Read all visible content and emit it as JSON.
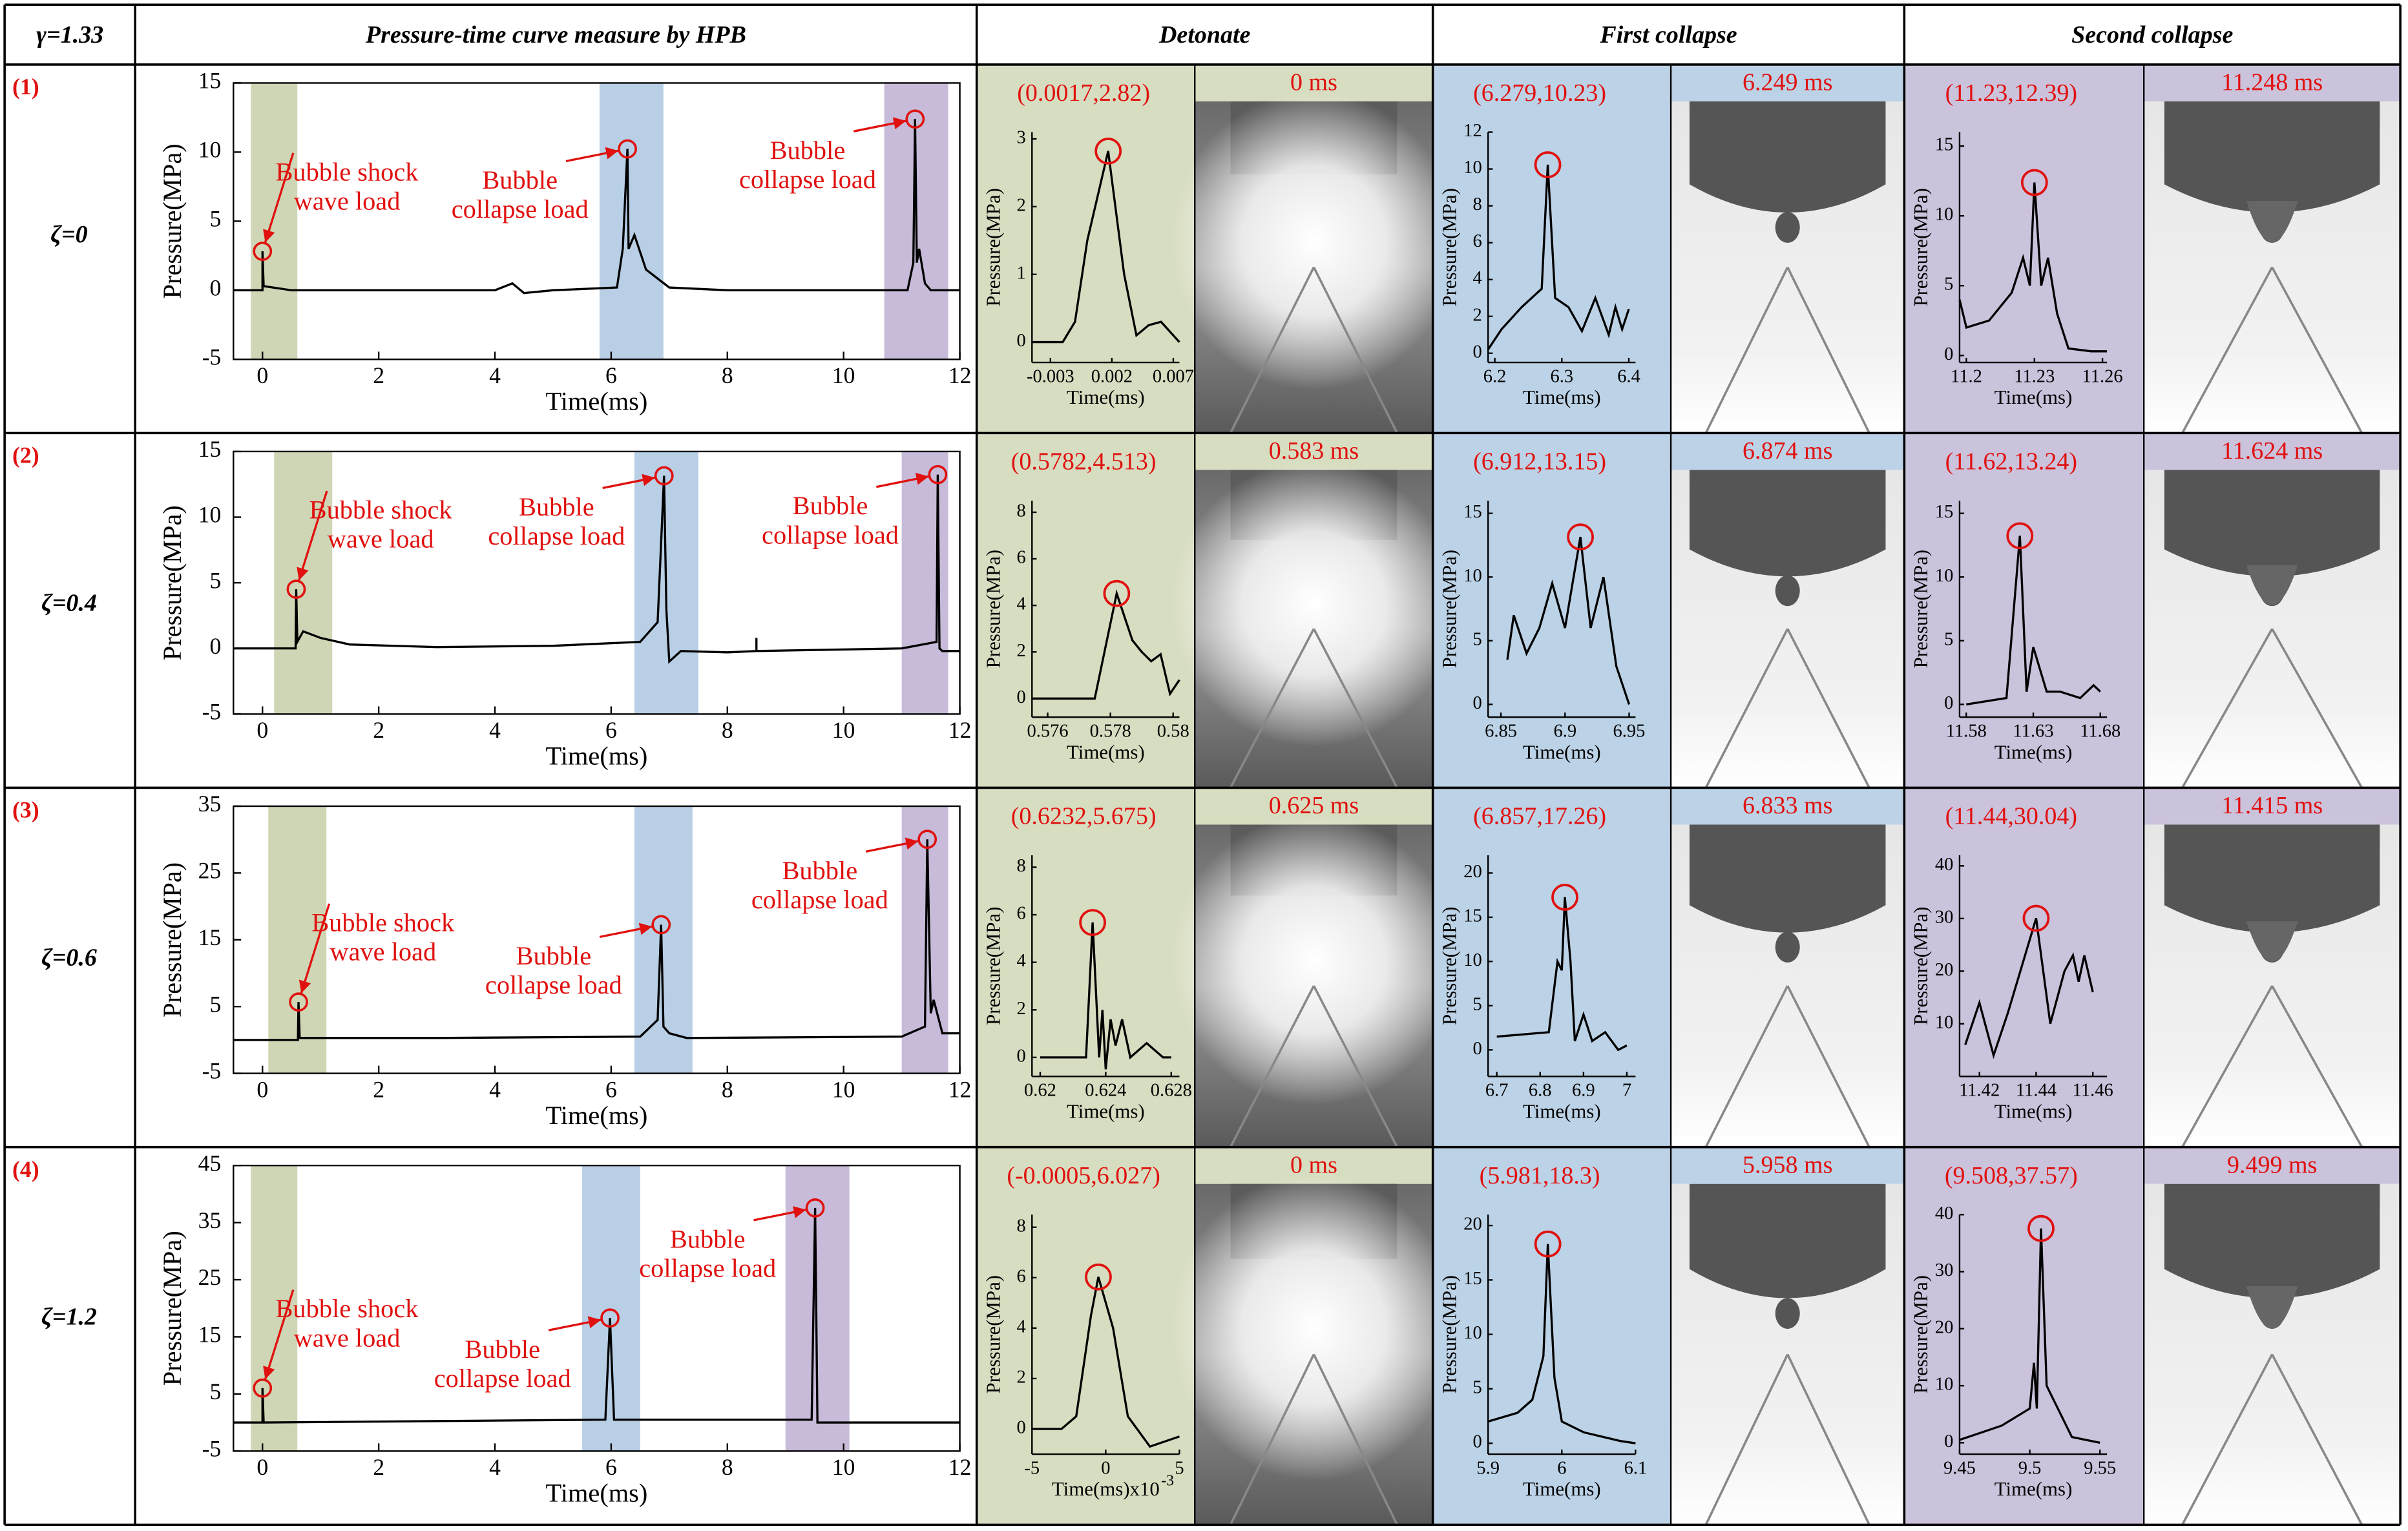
{
  "table": {
    "corner": "γ=1.33",
    "headers": [
      "Pressure-time curve measure by HPB",
      "Detonate",
      "First collapse",
      "Second collapse"
    ],
    "rows": [
      {
        "index": "(1)",
        "label": "ζ=0",
        "frames": [
          "0 ms",
          "6.249 ms",
          "11.248 ms"
        ]
      },
      {
        "index": "(2)",
        "label": "ζ=0.4",
        "frames": [
          "0.583 ms",
          "6.874 ms",
          "11.624 ms"
        ]
      },
      {
        "index": "(3)",
        "label": "ζ=0.6",
        "frames": [
          "0.625 ms",
          "6.833 ms",
          "11.415 ms"
        ]
      },
      {
        "index": "(4)",
        "label": "ζ=1.2",
        "frames": [
          "0 ms",
          "5.958 ms",
          "9.499 ms"
        ]
      }
    ]
  },
  "chart_data": [
    {
      "type": "line",
      "x_label": "Time(ms)",
      "y_label": "Pressure(MPa)",
      "color": "#000000",
      "marker_color": "#e0110f",
      "xlim": [
        -0.5,
        12
      ],
      "xticks": [
        0,
        2,
        4,
        6,
        8,
        10,
        12
      ],
      "ylim": [
        -5,
        15
      ],
      "yticks": [
        -5,
        0,
        5,
        10,
        15
      ],
      "x": [
        -0.5,
        0,
        0,
        0.02,
        0.5,
        4,
        4.3,
        4.5,
        5,
        6.1,
        6.2,
        6.28,
        6.3,
        6.4,
        6.6,
        7,
        8,
        10,
        11.1,
        11.2,
        11.23,
        11.26,
        11.3,
        11.4,
        11.5,
        12
      ],
      "values": [
        0,
        0,
        2.82,
        0.3,
        0,
        0,
        0.5,
        -0.2,
        0,
        0.2,
        3,
        10.23,
        3,
        4,
        1.5,
        0.2,
        0,
        0,
        0,
        2,
        12.39,
        2,
        3,
        0.5,
        0,
        0
      ],
      "bands": [
        {
          "range": [
            -0.2,
            0.6
          ],
          "color": "#c3cca3"
        },
        {
          "range": [
            5.8,
            6.9
          ],
          "color": "#a6c3df"
        },
        {
          "range": [
            10.7,
            11.8
          ],
          "color": "#b9aad0"
        }
      ],
      "annotations": [
        {
          "text": [
            "Bubble shock",
            "wave load"
          ],
          "x": 0,
          "y": 2.82
        },
        {
          "text": [
            "Bubble",
            "collapse load"
          ],
          "x": 6.28,
          "y": 10.23
        },
        {
          "text": [
            "Bubble",
            "collapse load"
          ],
          "x": 11.23,
          "y": 12.39
        }
      ]
    },
    {
      "type": "line",
      "x_label": "Time(ms)",
      "y_label": "Pressure(MPa)",
      "color": "#000000",
      "marker_color": "#e0110f",
      "xlim": [
        -0.5,
        12
      ],
      "xticks": [
        0,
        2,
        4,
        6,
        8,
        10,
        12
      ],
      "ylim": [
        -5,
        15
      ],
      "yticks": [
        -5,
        0,
        5,
        10,
        15
      ],
      "x": [
        -0.5,
        0.57,
        0.58,
        0.6,
        0.7,
        1,
        1.5,
        3,
        5,
        6.5,
        6.8,
        6.91,
        6.95,
        7,
        7.2,
        8,
        8.5,
        8.5,
        8.5,
        11,
        11.6,
        11.62,
        11.65,
        11.7,
        12
      ],
      "values": [
        0,
        0,
        4.51,
        0.5,
        1.3,
        0.8,
        0.3,
        0.1,
        0.2,
        0.5,
        2,
        13.15,
        3,
        -1,
        -0.2,
        -0.3,
        -0.2,
        0.8,
        -0.2,
        0,
        0.5,
        13.24,
        0,
        -0.2,
        -0.2
      ],
      "bands": [
        {
          "range": [
            0.2,
            1.2
          ],
          "color": "#c3cca3"
        },
        {
          "range": [
            6.4,
            7.5
          ],
          "color": "#a6c3df"
        },
        {
          "range": [
            11,
            11.8
          ],
          "color": "#b9aad0"
        }
      ],
      "annotations": [
        {
          "text": [
            "Bubble shock",
            "wave load"
          ],
          "x": 0.58,
          "y": 4.51
        },
        {
          "text": [
            "Bubble",
            "collapse load"
          ],
          "x": 6.91,
          "y": 13.15
        },
        {
          "text": [
            "Bubble",
            "collapse load"
          ],
          "x": 11.62,
          "y": 13.24
        }
      ]
    },
    {
      "type": "line",
      "x_label": "Time(ms)",
      "y_label": "Pressure(MPa)",
      "color": "#000000",
      "marker_color": "#e0110f",
      "xlim": [
        -0.5,
        12
      ],
      "xticks": [
        0,
        2,
        4,
        6,
        8,
        10,
        12
      ],
      "ylim": [
        -5,
        35
      ],
      "yticks": [
        -5,
        5,
        15,
        25,
        35
      ],
      "x": [
        -0.5,
        0.61,
        0.62,
        0.64,
        3,
        6.5,
        6.8,
        6.86,
        6.9,
        7,
        7.3,
        11,
        11.4,
        11.44,
        11.5,
        11.55,
        11.7,
        12
      ],
      "values": [
        0,
        0,
        5.68,
        0.3,
        0.3,
        0.5,
        3,
        17.26,
        2,
        1,
        0.3,
        0.5,
        2,
        30.04,
        4,
        6,
        1,
        1
      ],
      "bands": [
        {
          "range": [
            0.1,
            1.1
          ],
          "color": "#c3cca3"
        },
        {
          "range": [
            6.4,
            7.4
          ],
          "color": "#a6c3df"
        },
        {
          "range": [
            11,
            11.8
          ],
          "color": "#b9aad0"
        }
      ],
      "annotations": [
        {
          "text": [
            "Bubble shock",
            "wave load"
          ],
          "x": 0.62,
          "y": 5.68
        },
        {
          "text": [
            "Bubble",
            "collapse load"
          ],
          "x": 6.86,
          "y": 17.26
        },
        {
          "text": [
            "Bubble",
            "collapse load"
          ],
          "x": 11.44,
          "y": 30.04
        }
      ]
    },
    {
      "type": "line",
      "x_label": "Time(ms)",
      "y_label": "Pressure(MPa)",
      "color": "#000000",
      "marker_color": "#e0110f",
      "xlim": [
        -0.5,
        12
      ],
      "xticks": [
        0,
        2,
        4,
        6,
        8,
        10,
        12
      ],
      "ylim": [
        -5,
        45
      ],
      "yticks": [
        -5,
        5,
        15,
        25,
        35,
        45
      ],
      "x": [
        -0.5,
        0,
        0,
        0.02,
        5.9,
        5.98,
        6.05,
        9.45,
        9.51,
        9.55,
        12
      ],
      "values": [
        0,
        0,
        6.03,
        0,
        0.5,
        18.3,
        0.5,
        0.5,
        37.57,
        0,
        0
      ],
      "bands": [
        {
          "range": [
            -0.2,
            0.6
          ],
          "color": "#c3cca3"
        },
        {
          "range": [
            5.5,
            6.5
          ],
          "color": "#a6c3df"
        },
        {
          "range": [
            9,
            10.1
          ],
          "color": "#b9aad0"
        }
      ],
      "annotations": [
        {
          "text": [
            "Bubble shock",
            "wave load"
          ],
          "x": 0,
          "y": 6.03
        },
        {
          "text": [
            "Bubble",
            "collapse load"
          ],
          "x": 5.98,
          "y": 18.3
        },
        {
          "text": [
            "Bubble",
            "collapse load"
          ],
          "x": 9.51,
          "y": 37.57
        }
      ]
    },
    {
      "type": "line",
      "x_label": "Time(ms)",
      "y_label": "Pressure(MPa)",
      "color": "#000000",
      "background": "#d7ddc0",
      "xlim": [
        -0.0045,
        0.0075
      ],
      "xticks": [
        -0.003,
        0.002,
        0.007
      ],
      "ylim": [
        -0.3,
        3.1
      ],
      "yticks": [
        0,
        1,
        2,
        3
      ],
      "x": [
        -0.0045,
        -0.002,
        -0.001,
        0,
        0.0017,
        0.003,
        0.004,
        0.005,
        0.006,
        0.007,
        0.0075
      ],
      "values": [
        0,
        0,
        0.3,
        1.5,
        2.82,
        1,
        0.1,
        0.25,
        0.3,
        0.1,
        0
      ],
      "peak": {
        "x": 0.0017,
        "y": 2.82,
        "label": "(0.0017,2.82)"
      }
    },
    {
      "type": "line",
      "x_label": "Time(ms)",
      "y_label": "Pressure(MPa)",
      "color": "#000000",
      "background": "#bcd2e6",
      "xlim": [
        6.19,
        6.41
      ],
      "xticks": [
        6.2,
        6.3,
        6.4
      ],
      "ylim": [
        -0.5,
        12
      ],
      "yticks": [
        0,
        2,
        4,
        6,
        8,
        10,
        12
      ],
      "x": [
        6.19,
        6.21,
        6.24,
        6.27,
        6.279,
        6.29,
        6.31,
        6.33,
        6.35,
        6.37,
        6.38,
        6.39,
        6.4
      ],
      "values": [
        0.2,
        1.3,
        2.5,
        3.5,
        10.23,
        3,
        2.5,
        1.2,
        3,
        1,
        2.5,
        1.3,
        2.4
      ],
      "peak": {
        "x": 6.279,
        "y": 10.23,
        "label": "(6.279,10.23)"
      }
    },
    {
      "type": "line",
      "x_label": "Time(ms)",
      "y_label": "Pressure(MPa)",
      "color": "#000000",
      "background": "#cbc2dc",
      "xlim": [
        11.197,
        11.262
      ],
      "xticks": [
        11.2,
        11.23,
        11.26
      ],
      "ylim": [
        -0.5,
        16
      ],
      "yticks": [
        0,
        5,
        10,
        15
      ],
      "x": [
        11.197,
        11.2,
        11.21,
        11.22,
        11.225,
        11.228,
        11.23,
        11.233,
        11.236,
        11.24,
        11.245,
        11.255,
        11.262
      ],
      "values": [
        4,
        2,
        2.5,
        4.5,
        7,
        5,
        12.39,
        5,
        7,
        3,
        0.5,
        0.3,
        0.3
      ],
      "peak": {
        "x": 11.23,
        "y": 12.39,
        "label": "(11.23,12.39)"
      }
    },
    {
      "type": "line",
      "x_label": "Time(ms)",
      "y_label": "Pressure(MPa)",
      "color": "#000000",
      "background": "#d7ddc0",
      "xlim": [
        0.5755,
        0.5802
      ],
      "xticks": [
        0.576,
        0.578,
        0.58
      ],
      "ylim": [
        -0.8,
        8.5
      ],
      "yticks": [
        0,
        2,
        4,
        6,
        8
      ],
      "x": [
        0.5755,
        0.5775,
        0.5782,
        0.5787,
        0.579,
        0.5793,
        0.5796,
        0.5799,
        0.5802
      ],
      "values": [
        0,
        0,
        4.513,
        2.5,
        2,
        1.6,
        1.9,
        0.2,
        0.8
      ],
      "peak": {
        "x": 0.5782,
        "y": 4.513,
        "label": "(0.5782,4.513)"
      }
    },
    {
      "type": "line",
      "x_label": "Time(ms)",
      "y_label": "Pressure(MPa)",
      "color": "#000000",
      "background": "#bcd2e6",
      "xlim": [
        6.84,
        6.955
      ],
      "xticks": [
        6.85,
        6.9,
        6.95
      ],
      "ylim": [
        -1,
        16
      ],
      "yticks": [
        0,
        5,
        10,
        15
      ],
      "x": [
        6.855,
        6.86,
        6.87,
        6.88,
        6.89,
        6.9,
        6.905,
        6.912,
        6.92,
        6.93,
        6.94,
        6.95
      ],
      "values": [
        3.5,
        7,
        4,
        6,
        9.5,
        6,
        9,
        13.15,
        6,
        10,
        3,
        0
      ],
      "peak": {
        "x": 6.912,
        "y": 13.15,
        "label": "(6.912,13.15)"
      }
    },
    {
      "type": "line",
      "x_label": "Time(ms)",
      "y_label": "Pressure(MPa)",
      "color": "#000000",
      "background": "#cbc2dc",
      "xlim": [
        11.575,
        11.685
      ],
      "xticks": [
        11.58,
        11.63,
        11.68
      ],
      "ylim": [
        -1,
        16
      ],
      "yticks": [
        0,
        5,
        10,
        15
      ],
      "x": [
        11.58,
        11.61,
        11.62,
        11.625,
        11.63,
        11.64,
        11.65,
        11.665,
        11.675,
        11.68
      ],
      "values": [
        0,
        0.5,
        13.24,
        1,
        4.5,
        1,
        1,
        0.5,
        1.5,
        1
      ],
      "peak": {
        "x": 11.62,
        "y": 13.24,
        "label": "(11.62,13.24)"
      }
    },
    {
      "type": "line",
      "x_label": "Time(ms)",
      "y_label": "Pressure(MPa)",
      "color": "#000000",
      "background": "#d7ddc0",
      "xlim": [
        0.6195,
        0.6285
      ],
      "xticks": [
        0.62,
        0.624,
        0.628
      ],
      "ylim": [
        -0.8,
        8.5
      ],
      "yticks": [
        0,
        2,
        4,
        6,
        8
      ],
      "x": [
        0.62,
        0.6228,
        0.6232,
        0.6236,
        0.6238,
        0.624,
        0.6243,
        0.6246,
        0.625,
        0.6255,
        0.6265,
        0.6275,
        0.628
      ],
      "values": [
        0,
        0,
        5.675,
        0,
        2,
        -0.5,
        1.6,
        0.5,
        1.6,
        0,
        0.6,
        0,
        0
      ],
      "peak": {
        "x": 0.6232,
        "y": 5.675,
        "label": "(0.6232,5.675)"
      }
    },
    {
      "type": "line",
      "x_label": "Time(ms)",
      "y_label": "Pressure(MPa)",
      "color": "#000000",
      "background": "#bcd2e6",
      "xlim": [
        6.68,
        7.02
      ],
      "xticks": [
        6.7,
        6.8,
        6.9,
        7
      ],
      "ylim": [
        -3,
        22
      ],
      "yticks": [
        0,
        5,
        10,
        15,
        20
      ],
      "x": [
        6.7,
        6.82,
        6.84,
        6.85,
        6.857,
        6.87,
        6.88,
        6.9,
        6.92,
        6.95,
        6.98,
        7
      ],
      "values": [
        1.5,
        2,
        10,
        9,
        17.26,
        10,
        1,
        4,
        1,
        2,
        0,
        0.5
      ],
      "peak": {
        "x": 6.857,
        "y": 17.26,
        "label": "(6.857,17.26)"
      }
    },
    {
      "type": "line",
      "x_label": "Time(ms)",
      "y_label": "Pressure(MPa)",
      "color": "#000000",
      "background": "#cbc2dc",
      "xlim": [
        11.413,
        11.465
      ],
      "xticks": [
        11.42,
        11.44,
        11.46
      ],
      "ylim": [
        0,
        42
      ],
      "yticks": [
        10,
        20,
        30,
        40
      ],
      "x": [
        11.415,
        11.42,
        11.425,
        11.43,
        11.44,
        11.445,
        11.45,
        11.453,
        11.455,
        11.457,
        11.46
      ],
      "values": [
        6,
        14,
        4,
        12,
        30.04,
        10,
        20,
        23,
        18,
        23,
        16
      ],
      "peak": {
        "x": 11.44,
        "y": 30.04,
        "label": "(11.44,30.04)"
      }
    },
    {
      "type": "line",
      "x_label": "Time(ms)x10",
      "x_label_exponent": "-3",
      "y_label": "Pressure(MPa)",
      "color": "#000000",
      "background": "#d7ddc0",
      "xlim": [
        -5,
        5
      ],
      "xticks": [
        -5,
        0,
        5
      ],
      "ylim": [
        -1,
        8.5
      ],
      "yticks": [
        0,
        2,
        4,
        6,
        8
      ],
      "x": [
        -5,
        -3,
        -2,
        -1,
        -0.5,
        0.5,
        1.5,
        3,
        5
      ],
      "values": [
        0,
        0,
        0.5,
        4.5,
        6.027,
        4,
        0.5,
        -0.7,
        -0.3
      ],
      "peak": {
        "x": -0.5,
        "y": 6.027,
        "label": "(-0.0005,6.027)"
      }
    },
    {
      "type": "line",
      "x_label": "Time(ms)",
      "y_label": "Pressure(MPa)",
      "color": "#000000",
      "background": "#bcd2e6",
      "xlim": [
        5.9,
        6.1
      ],
      "xticks": [
        5.9,
        6,
        6.1
      ],
      "ylim": [
        -1,
        21
      ],
      "yticks": [
        0,
        5,
        10,
        15,
        20
      ],
      "x": [
        5.9,
        5.94,
        5.96,
        5.975,
        5.981,
        5.99,
        6,
        6.03,
        6.08,
        6.1
      ],
      "values": [
        2,
        2.8,
        4,
        8,
        18.3,
        6,
        2,
        1,
        0.2,
        0
      ],
      "peak": {
        "x": 5.981,
        "y": 18.3,
        "label": "(5.981,18.3)"
      }
    },
    {
      "type": "line",
      "x_label": "Time(ms)",
      "y_label": "Pressure(MPa)",
      "color": "#000000",
      "background": "#cbc2dc",
      "xlim": [
        9.45,
        9.555
      ],
      "xticks": [
        9.45,
        9.5,
        9.55
      ],
      "ylim": [
        -2,
        40
      ],
      "yticks": [
        0,
        10,
        20,
        30,
        40
      ],
      "x": [
        9.45,
        9.48,
        9.5,
        9.503,
        9.505,
        9.508,
        9.512,
        9.52,
        9.53,
        9.54,
        9.55
      ],
      "values": [
        0.5,
        3,
        6,
        14,
        6,
        37.57,
        10,
        6,
        1,
        0.5,
        0
      ],
      "peak": {
        "x": 9.508,
        "y": 37.57,
        "label": "(9.508,37.57)"
      }
    }
  ]
}
